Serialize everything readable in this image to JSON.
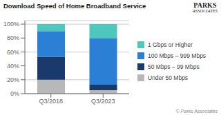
{
  "chart_data": {
    "type": "bar",
    "title": "Download Speed of Home Broadband Service",
    "categories": [
      "Q3/2018",
      "Q3/2023"
    ],
    "series": [
      {
        "name": "Under 50 Mbps",
        "color": "#b8b8b8",
        "values": [
          20,
          5
        ]
      },
      {
        "name": "50 Mbps – 99 Mbps",
        "color": "#1a3a6b",
        "values": [
          33,
          8
        ]
      },
      {
        "name": "100 Mbps – 999 Mbps",
        "color": "#2b7fd4",
        "values": [
          37,
          67
        ]
      },
      {
        "name": "1 Gbps or Higher",
        "color": "#4ec8bc",
        "values": [
          10,
          20
        ]
      }
    ],
    "stacked": true,
    "ylim": [
      0,
      105
    ],
    "yticks": [
      {
        "value": 0,
        "label": "0%"
      },
      {
        "value": 20,
        "label": "20%"
      },
      {
        "value": 40,
        "label": "40%"
      },
      {
        "value": 60,
        "label": "60%"
      },
      {
        "value": 80,
        "label": "80%"
      },
      {
        "value": 100,
        "label": "100%"
      }
    ],
    "grid": true,
    "legend": "right",
    "annotations": [
      "PARKS",
      "ASSOCIATES",
      "© Parks Associates"
    ]
  }
}
